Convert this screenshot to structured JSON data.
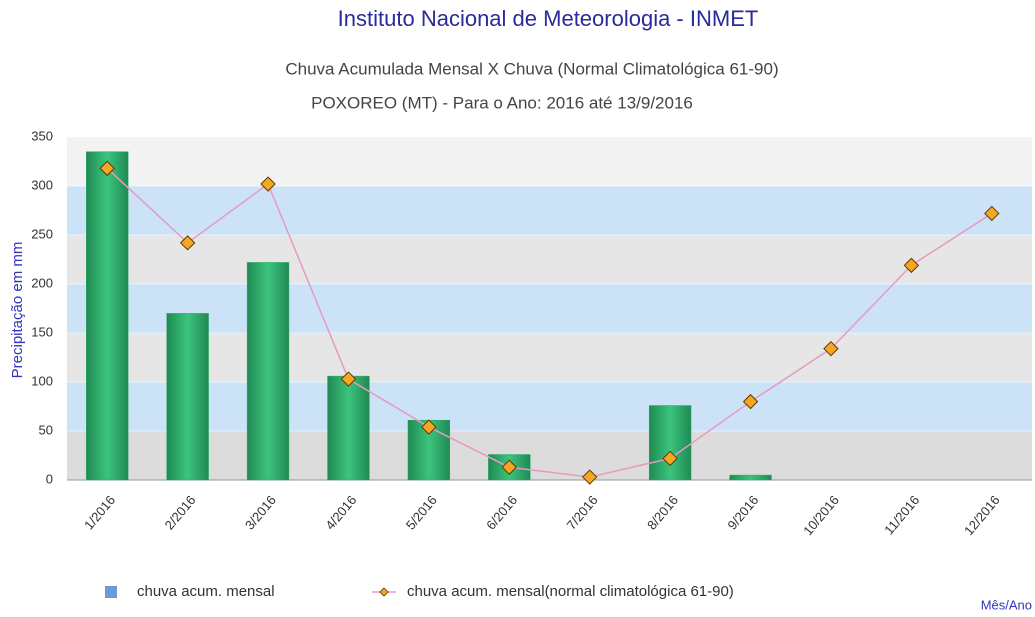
{
  "chart_data": {
    "type": "bar_line",
    "title": "Instituto Nacional de Meteorologia - INMET",
    "subtitle": "Chuva Acumulada Mensal X Chuva (Normal Climatológica 61-90)",
    "subtitle2": "POXOREO (MT) - Para o Ano: 2016 até 13/9/2016",
    "y_label": "Precipitação em mm",
    "x_label": "Mês/Ano",
    "categories": [
      "1/2016",
      "2/2016",
      "3/2016",
      "4/2016",
      "5/2016",
      "6/2016",
      "7/2016",
      "8/2016",
      "9/2016",
      "10/2016",
      "11/2016",
      "12/2016"
    ],
    "series": [
      {
        "name": "chuva acum. mensal",
        "type": "bar",
        "color": "#2aa866",
        "legend_color": "#6b9bd1",
        "values": [
          335,
          170,
          222,
          106,
          61,
          26,
          0,
          76,
          5,
          null,
          null,
          null
        ]
      },
      {
        "name": "chuva acum. mensal(normal climatológica 61-90)",
        "type": "line",
        "color": "#e59ac4",
        "marker_color": "#f5a623",
        "values": [
          318,
          242,
          302,
          103,
          54,
          13,
          3,
          22,
          80,
          134,
          219,
          272
        ]
      }
    ],
    "ylim": [
      0,
      350
    ],
    "yticks": [
      0,
      50,
      100,
      150,
      200,
      250,
      300,
      350
    ]
  }
}
